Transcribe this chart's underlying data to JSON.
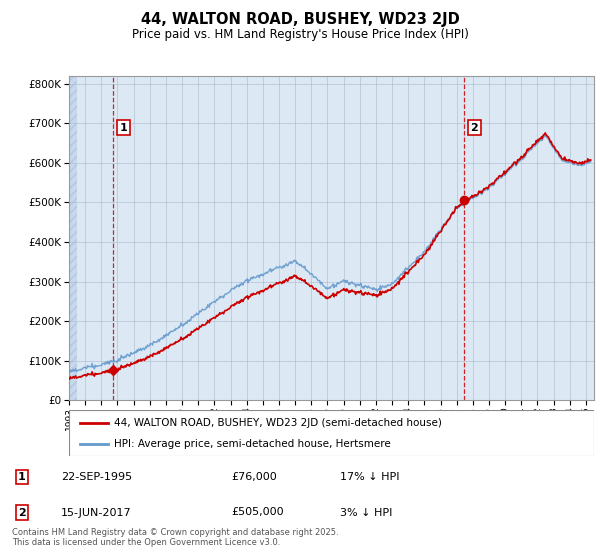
{
  "title": "44, WALTON ROAD, BUSHEY, WD23 2JD",
  "subtitle": "Price paid vs. HM Land Registry's House Price Index (HPI)",
  "legend_line1": "44, WALTON ROAD, BUSHEY, WD23 2JD (semi-detached house)",
  "legend_line2": "HPI: Average price, semi-detached house, Hertsmere",
  "footnote": "Contains HM Land Registry data © Crown copyright and database right 2025.\nThis data is licensed under the Open Government Licence v3.0.",
  "annotation1_label": "1",
  "annotation1_date": "22-SEP-1995",
  "annotation1_price": "£76,000",
  "annotation1_hpi": "17% ↓ HPI",
  "annotation1_year": 1995.73,
  "annotation2_label": "2",
  "annotation2_date": "15-JUN-2017",
  "annotation2_price": "£505,000",
  "annotation2_hpi": "3% ↓ HPI",
  "annotation2_year": 2017.45,
  "price_paid_color": "#cc0000",
  "hpi_color": "#6699cc",
  "dashed_line_color": "#cc0000",
  "chart_bg_color": "#dce9f5",
  "hatch_bg_color": "#c8d8ec",
  "grid_color": "#aabbcc",
  "ylim": [
    0,
    820000
  ],
  "xlim_start": 1993,
  "xlim_end": 2025.5,
  "marker1_x": 1995.73,
  "marker1_y": 76000,
  "marker2_x": 2017.45,
  "marker2_y": 505000
}
